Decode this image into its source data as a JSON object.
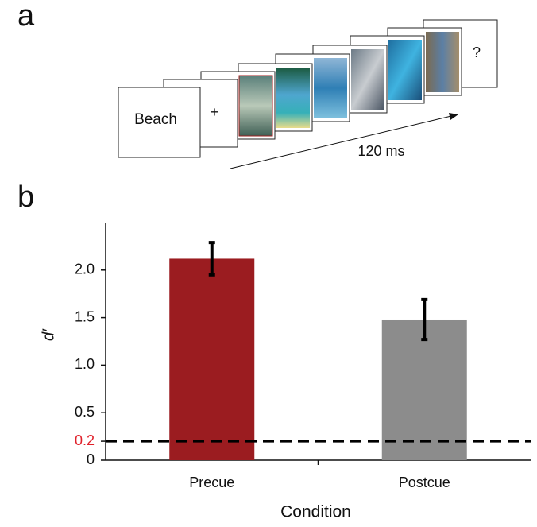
{
  "figure": {
    "panel_a": {
      "label": "a",
      "first_frame": "Beach",
      "fixation": "+",
      "probe": "?",
      "arrow_label": "120 ms"
    },
    "panel_b": {
      "label": "b"
    }
  },
  "chart_data": {
    "type": "bar",
    "categories": [
      "Precue",
      "Postcue"
    ],
    "values": [
      2.12,
      1.48
    ],
    "errors": [
      0.17,
      0.21
    ],
    "colors": [
      "#9b1c20",
      "#8c8c8c"
    ],
    "ylim": [
      0,
      2.5
    ],
    "yticks": [
      0,
      0.2,
      {
        "value": 0.5,
        "label": "0.5"
      },
      {
        "value": 1,
        "label": "1.0"
      },
      {
        "value": 1.5,
        "label": "1.5"
      },
      {
        "value": 2,
        "label": "2.0"
      }
    ],
    "y_label": "d′",
    "x_label": "Condition",
    "reference_line": {
      "value": 0.2,
      "label_color": "#e0202a"
    }
  }
}
